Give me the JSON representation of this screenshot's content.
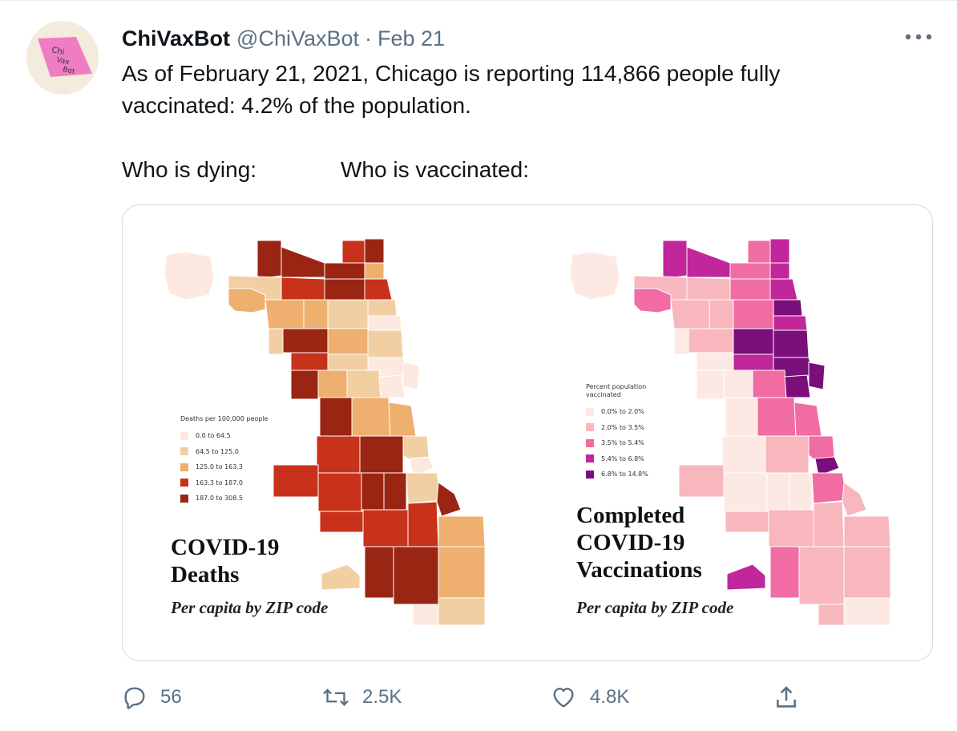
{
  "tweet": {
    "display_name": "ChiVaxBot",
    "handle": "@ChiVaxBot",
    "separator": "·",
    "date": "Feb 21",
    "avatar_text": [
      "Chi",
      "Vax",
      "Bot"
    ],
    "text_line1": "As of February 21, 2021, Chicago is reporting 114,866 people fully",
    "text_line2": "vaccinated: 4.2% of the population.",
    "text_left": "Who is dying:",
    "text_right": "Who is vaccinated:"
  },
  "deaths_map": {
    "legend_title": "Deaths per 100,000 people",
    "legend": [
      {
        "label": "0.0 to 64.5",
        "color": "#fde9df"
      },
      {
        "label": "64.5 to 125.0",
        "color": "#f2cfa2"
      },
      {
        "label": "125.0 to 163.3",
        "color": "#eeaf6f"
      },
      {
        "label": "163.3 to 187.0",
        "color": "#c8321a"
      },
      {
        "label": "187.0 to 308.5",
        "color": "#9a2513"
      }
    ],
    "title_line1": "COVID-19",
    "title_line2": "Deaths",
    "subtitle": "Per capita by ZIP code"
  },
  "vax_map": {
    "legend_title_line1": "Percent population",
    "legend_title_line2": "vaccinated",
    "legend": [
      {
        "label": "0.0% to 2.0%",
        "color": "#fde9e3"
      },
      {
        "label": "2.0% to 3.5%",
        "color": "#f8b6bd"
      },
      {
        "label": "3.5% to 5.4%",
        "color": "#f06ca3"
      },
      {
        "label": "5.4% to 6.8%",
        "color": "#c1269a"
      },
      {
        "label": "6.8% to 14.8%",
        "color": "#7a0e7a"
      }
    ],
    "title_line1": "Completed",
    "title_line2": "COVID-19",
    "title_line3": "Vaccinations",
    "subtitle": "Per capita by ZIP code"
  },
  "actions": {
    "replies": "56",
    "retweets": "2.5K",
    "likes": "4.8K"
  },
  "colors": {
    "muted_text": "#5b7083",
    "border": "#cfd9de"
  }
}
